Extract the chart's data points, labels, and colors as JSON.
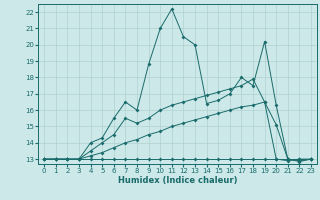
{
  "xlabel": "Humidex (Indice chaleur)",
  "bg_color": "#cce8e8",
  "grid_color": "#b0d0d0",
  "line_color": "#1a6b6b",
  "xlim": [
    -0.5,
    23.5
  ],
  "ylim": [
    12.7,
    22.5
  ],
  "yticks": [
    13,
    14,
    15,
    16,
    17,
    18,
    19,
    20,
    21,
    22
  ],
  "xticks": [
    0,
    1,
    2,
    3,
    4,
    5,
    6,
    7,
    8,
    9,
    10,
    11,
    12,
    13,
    14,
    15,
    16,
    17,
    18,
    19,
    20,
    21,
    22,
    23
  ],
  "line1_x": [
    0,
    1,
    2,
    3,
    4,
    5,
    6,
    7,
    8,
    9,
    10,
    11,
    12,
    13,
    14,
    15,
    16,
    17,
    18,
    19,
    20,
    21,
    22,
    23
  ],
  "line1_y": [
    13,
    13,
    13,
    13,
    13,
    13,
    13,
    13,
    13,
    13,
    13,
    13,
    13,
    13,
    13,
    13,
    13,
    13,
    13,
    13,
    13,
    13,
    13,
    13
  ],
  "line2_x": [
    0,
    1,
    2,
    3,
    4,
    5,
    6,
    7,
    8,
    9,
    10,
    11,
    12,
    13,
    14,
    15,
    16,
    17,
    18,
    19,
    20,
    21,
    22,
    23
  ],
  "line2_y": [
    13,
    13,
    13,
    13,
    13.2,
    13.4,
    13.7,
    14.0,
    14.2,
    14.5,
    14.7,
    15.0,
    15.2,
    15.4,
    15.6,
    15.8,
    16.0,
    16.2,
    16.3,
    16.5,
    15.1,
    13.0,
    12.9,
    13.0
  ],
  "line3_x": [
    0,
    1,
    2,
    3,
    4,
    5,
    6,
    7,
    8,
    9,
    10,
    11,
    12,
    13,
    14,
    15,
    16,
    17,
    18,
    19,
    20,
    21,
    22,
    23
  ],
  "line3_y": [
    13,
    13,
    13,
    13,
    13.5,
    14.0,
    14.5,
    15.5,
    15.2,
    15.5,
    16.0,
    16.3,
    16.5,
    16.7,
    16.9,
    17.1,
    17.3,
    17.5,
    17.9,
    16.5,
    13.0,
    12.9,
    13.0,
    13.0
  ],
  "line4_x": [
    0,
    1,
    2,
    3,
    4,
    5,
    6,
    7,
    8,
    9,
    10,
    11,
    12,
    13,
    14,
    15,
    16,
    17,
    18,
    19,
    20,
    21,
    22,
    23
  ],
  "line4_y": [
    13,
    13,
    13,
    13,
    14.0,
    14.3,
    15.5,
    16.5,
    16.0,
    18.8,
    21.0,
    22.2,
    20.5,
    20.0,
    16.4,
    16.6,
    17.0,
    18.0,
    17.5,
    20.2,
    16.3,
    13.0,
    12.85,
    13.0
  ]
}
